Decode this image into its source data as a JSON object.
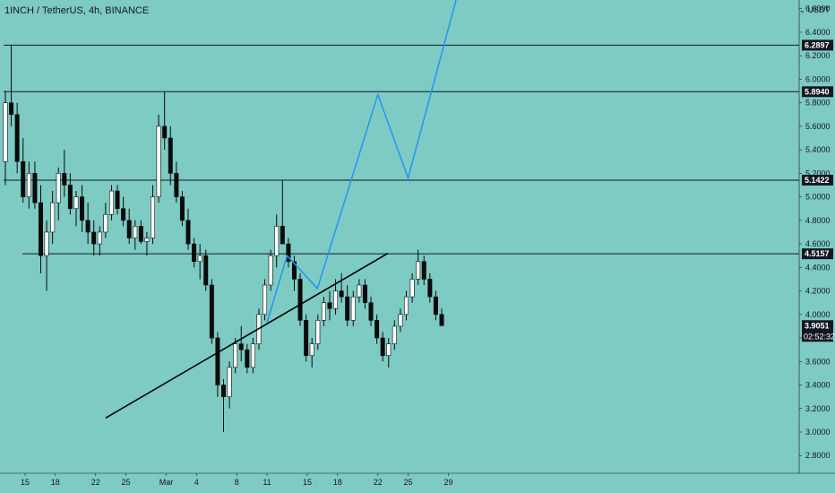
{
  "header": {
    "symbol_title": "1INCH / TetherUS, 4h, BINANCE",
    "currency": "USDT"
  },
  "colors": {
    "background": "#7dcbc3",
    "candle_up": "#ffffff",
    "candle_down": "#0b0b0b",
    "projection": "#2196f3",
    "trendline": "#000000",
    "level_line": "#131722",
    "label_bg": "#131722"
  },
  "chart_data": {
    "type": "candlestick",
    "title": "1INCH / TetherUS, 4h, BINANCE",
    "ylabel": "",
    "xlabel": "",
    "ylim": [
      2.65,
      6.9
    ],
    "x_ticks": [
      "15",
      "18",
      "22",
      "25",
      "Mar",
      "4",
      "8",
      "11",
      "15",
      "18",
      "22",
      "25",
      "29"
    ],
    "y_ticks": [
      "2.8000",
      "3.0000",
      "3.2000",
      "3.4000",
      "3.6000",
      "3.8000",
      "4.0000",
      "4.2000",
      "4.4000",
      "4.6000",
      "4.8000",
      "5.0000",
      "5.2000",
      "5.4000",
      "5.6000",
      "5.8000",
      "6.0000",
      "6.2000",
      "6.4000",
      "6.6000"
    ],
    "horizontal_levels": [
      6.2897,
      5.894,
      5.1422,
      4.5157
    ],
    "current_price": {
      "value": 3.9051,
      "countdown": "02:52:32"
    },
    "trendline": {
      "from": {
        "date": "Feb 23",
        "price": 3.12
      },
      "to": {
        "date": "Mar 23",
        "price": 4.52
      }
    },
    "projection_path": [
      {
        "date": "Mar 11",
        "price": 3.93
      },
      {
        "date": "Mar 13",
        "price": 4.5
      },
      {
        "date": "Mar 16",
        "price": 4.22
      },
      {
        "date": "Mar 22",
        "price": 5.87
      },
      {
        "date": "Mar 25",
        "price": 5.16
      },
      {
        "date": "Mar 30",
        "price": 6.75
      }
    ],
    "candles": [
      [
        5.3,
        5.9,
        5.1,
        5.8
      ],
      [
        5.8,
        6.29,
        5.6,
        5.7
      ],
      [
        5.7,
        5.8,
        5.2,
        5.3
      ],
      [
        5.3,
        5.5,
        4.95,
        5.0
      ],
      [
        5.0,
        5.3,
        4.9,
        5.2
      ],
      [
        5.2,
        5.3,
        4.9,
        4.95
      ],
      [
        4.95,
        5.1,
        4.35,
        4.5
      ],
      [
        4.5,
        4.8,
        4.2,
        4.7
      ],
      [
        4.7,
        5.05,
        4.6,
        4.95
      ],
      [
        4.95,
        5.25,
        4.8,
        5.2
      ],
      [
        5.2,
        5.4,
        5.0,
        5.1
      ],
      [
        5.1,
        5.2,
        4.85,
        4.9
      ],
      [
        4.9,
        5.05,
        4.75,
        5.0
      ],
      [
        5.0,
        5.1,
        4.7,
        4.8
      ],
      [
        4.8,
        4.95,
        4.6,
        4.7
      ],
      [
        4.7,
        4.8,
        4.5,
        4.6
      ],
      [
        4.6,
        4.75,
        4.5,
        4.7
      ],
      [
        4.7,
        4.95,
        4.65,
        4.85
      ],
      [
        4.85,
        5.1,
        4.8,
        5.05
      ],
      [
        5.05,
        5.1,
        4.85,
        4.9
      ],
      [
        4.9,
        5.0,
        4.75,
        4.8
      ],
      [
        4.8,
        4.9,
        4.6,
        4.65
      ],
      [
        4.65,
        4.8,
        4.55,
        4.75
      ],
      [
        4.75,
        4.8,
        4.6,
        4.62
      ],
      [
        4.62,
        4.7,
        4.5,
        4.65
      ],
      [
        4.65,
        5.1,
        4.6,
        5.0
      ],
      [
        5.0,
        5.7,
        4.95,
        5.6
      ],
      [
        5.6,
        5.89,
        5.4,
        5.5
      ],
      [
        5.5,
        5.6,
        5.1,
        5.2
      ],
      [
        5.2,
        5.3,
        4.95,
        5.0
      ],
      [
        5.0,
        5.05,
        4.75,
        4.8
      ],
      [
        4.8,
        4.9,
        4.55,
        4.6
      ],
      [
        4.6,
        4.65,
        4.4,
        4.45
      ],
      [
        4.45,
        4.6,
        4.3,
        4.5
      ],
      [
        4.5,
        4.55,
        4.2,
        4.25
      ],
      [
        4.25,
        4.3,
        3.75,
        3.8
      ],
      [
        3.8,
        3.85,
        3.3,
        3.4
      ],
      [
        3.4,
        3.45,
        3.0,
        3.3
      ],
      [
        3.3,
        3.6,
        3.2,
        3.55
      ],
      [
        3.55,
        3.8,
        3.5,
        3.75
      ],
      [
        3.75,
        3.9,
        3.6,
        3.7
      ],
      [
        3.7,
        3.75,
        3.5,
        3.55
      ],
      [
        3.55,
        3.8,
        3.5,
        3.75
      ],
      [
        3.75,
        4.05,
        3.7,
        4.0
      ],
      [
        4.0,
        4.3,
        3.95,
        4.25
      ],
      [
        4.25,
        4.55,
        4.2,
        4.5
      ],
      [
        4.5,
        4.85,
        4.4,
        4.75
      ],
      [
        4.75,
        5.14,
        4.6,
        4.6
      ],
      [
        4.6,
        4.65,
        4.4,
        4.45
      ],
      [
        4.45,
        4.5,
        4.2,
        4.3
      ],
      [
        4.3,
        4.35,
        3.9,
        3.95
      ],
      [
        3.95,
        4.0,
        3.6,
        3.65
      ],
      [
        3.65,
        3.8,
        3.55,
        3.75
      ],
      [
        3.75,
        4.0,
        3.7,
        3.95
      ],
      [
        3.95,
        4.15,
        3.9,
        4.1
      ],
      [
        4.1,
        4.2,
        3.95,
        4.05
      ],
      [
        4.05,
        4.3,
        4.0,
        4.2
      ],
      [
        4.2,
        4.35,
        4.1,
        4.15
      ],
      [
        4.15,
        4.25,
        3.9,
        3.95
      ],
      [
        3.95,
        4.2,
        3.9,
        4.15
      ],
      [
        4.15,
        4.3,
        4.1,
        4.25
      ],
      [
        4.25,
        4.3,
        4.05,
        4.1
      ],
      [
        4.1,
        4.15,
        3.9,
        3.95
      ],
      [
        3.95,
        4.0,
        3.75,
        3.8
      ],
      [
        3.8,
        3.85,
        3.6,
        3.65
      ],
      [
        3.65,
        3.8,
        3.55,
        3.75
      ],
      [
        3.75,
        3.95,
        3.7,
        3.9
      ],
      [
        3.9,
        4.05,
        3.85,
        4.0
      ],
      [
        4.0,
        4.2,
        3.95,
        4.15
      ],
      [
        4.15,
        4.35,
        4.1,
        4.3
      ],
      [
        4.3,
        4.55,
        4.25,
        4.45
      ],
      [
        4.45,
        4.5,
        4.25,
        4.3
      ],
      [
        4.3,
        4.35,
        4.1,
        4.15
      ],
      [
        4.15,
        4.2,
        3.95,
        4.0
      ],
      [
        4.0,
        4.05,
        3.9,
        3.905
      ]
    ]
  }
}
